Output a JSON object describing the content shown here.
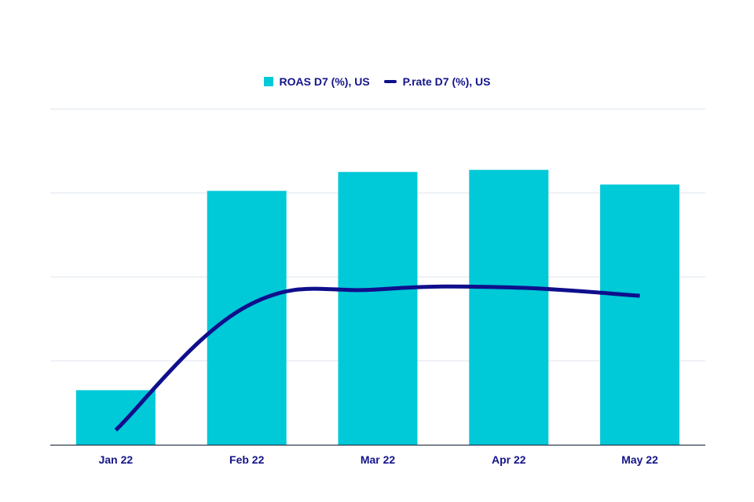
{
  "chart_data": {
    "type": "bar",
    "categories": [
      "Jan 22",
      "Feb 22",
      "Mar 22",
      "Apr 22",
      "May 22"
    ],
    "series": [
      {
        "name": "ROAS D7 (%), US",
        "type": "bar",
        "values": [
          1.3,
          6.05,
          6.5,
          6.55,
          6.2
        ]
      },
      {
        "name": "P.rate D7 (%), US",
        "type": "line",
        "values": [
          0.35,
          3.3,
          3.7,
          3.75,
          3.55
        ]
      }
    ],
    "ylim": [
      0,
      8
    ],
    "grid": true,
    "legend_position": "top-center",
    "colors": {
      "bar": "#00c9d8",
      "line": "#0f0f8c",
      "grid": "#dce6ee",
      "axis": "#2b3a4a",
      "text": "#14148a"
    }
  }
}
